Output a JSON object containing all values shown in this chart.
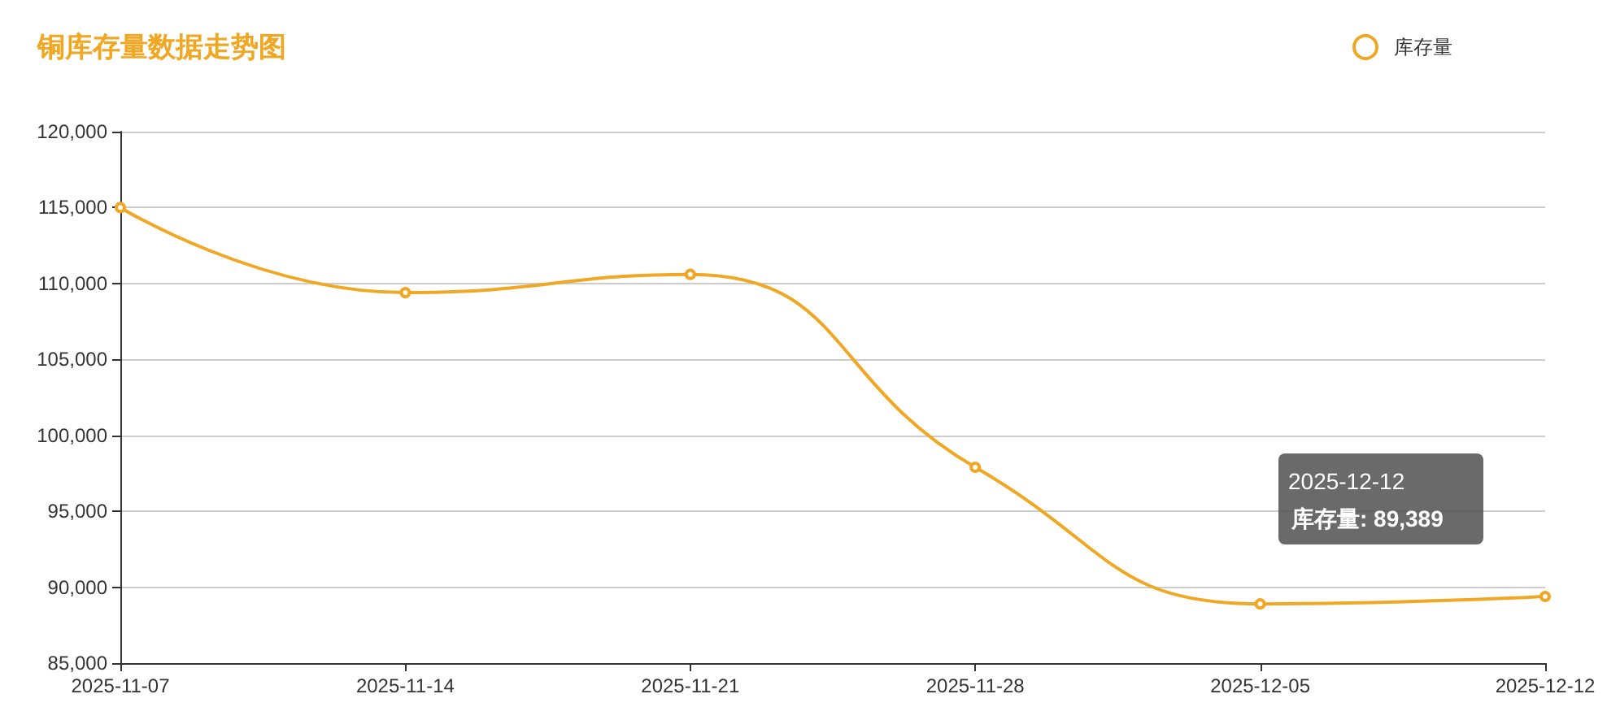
{
  "chart_data": {
    "type": "line",
    "title": "铜库存量数据走势图",
    "categories": [
      "2025-11-07",
      "2025-11-14",
      "2025-11-21",
      "2025-11-28",
      "2025-12-05",
      "2025-12-12"
    ],
    "series": [
      {
        "name": "库存量",
        "color": "#f0a824",
        "values": [
          115000,
          109400,
          110600,
          97900,
          88900,
          89389
        ]
      }
    ],
    "ylim": [
      85000,
      120000
    ],
    "yticks": [
      {
        "value": 85000,
        "label": "85,000"
      },
      {
        "value": 90000,
        "label": "90,000"
      },
      {
        "value": 95000,
        "label": "95,000"
      },
      {
        "value": 100000,
        "label": "100,000"
      },
      {
        "value": 105000,
        "label": "105,000"
      },
      {
        "value": 110000,
        "label": "110,000"
      },
      {
        "value": 115000,
        "label": "115,000"
      },
      {
        "value": 120000,
        "label": "120,000"
      }
    ],
    "grid": "y",
    "legend": "top right",
    "marker": "circle",
    "annotations": [
      "2025-12-12\n库存量: 89,389"
    ]
  }
}
